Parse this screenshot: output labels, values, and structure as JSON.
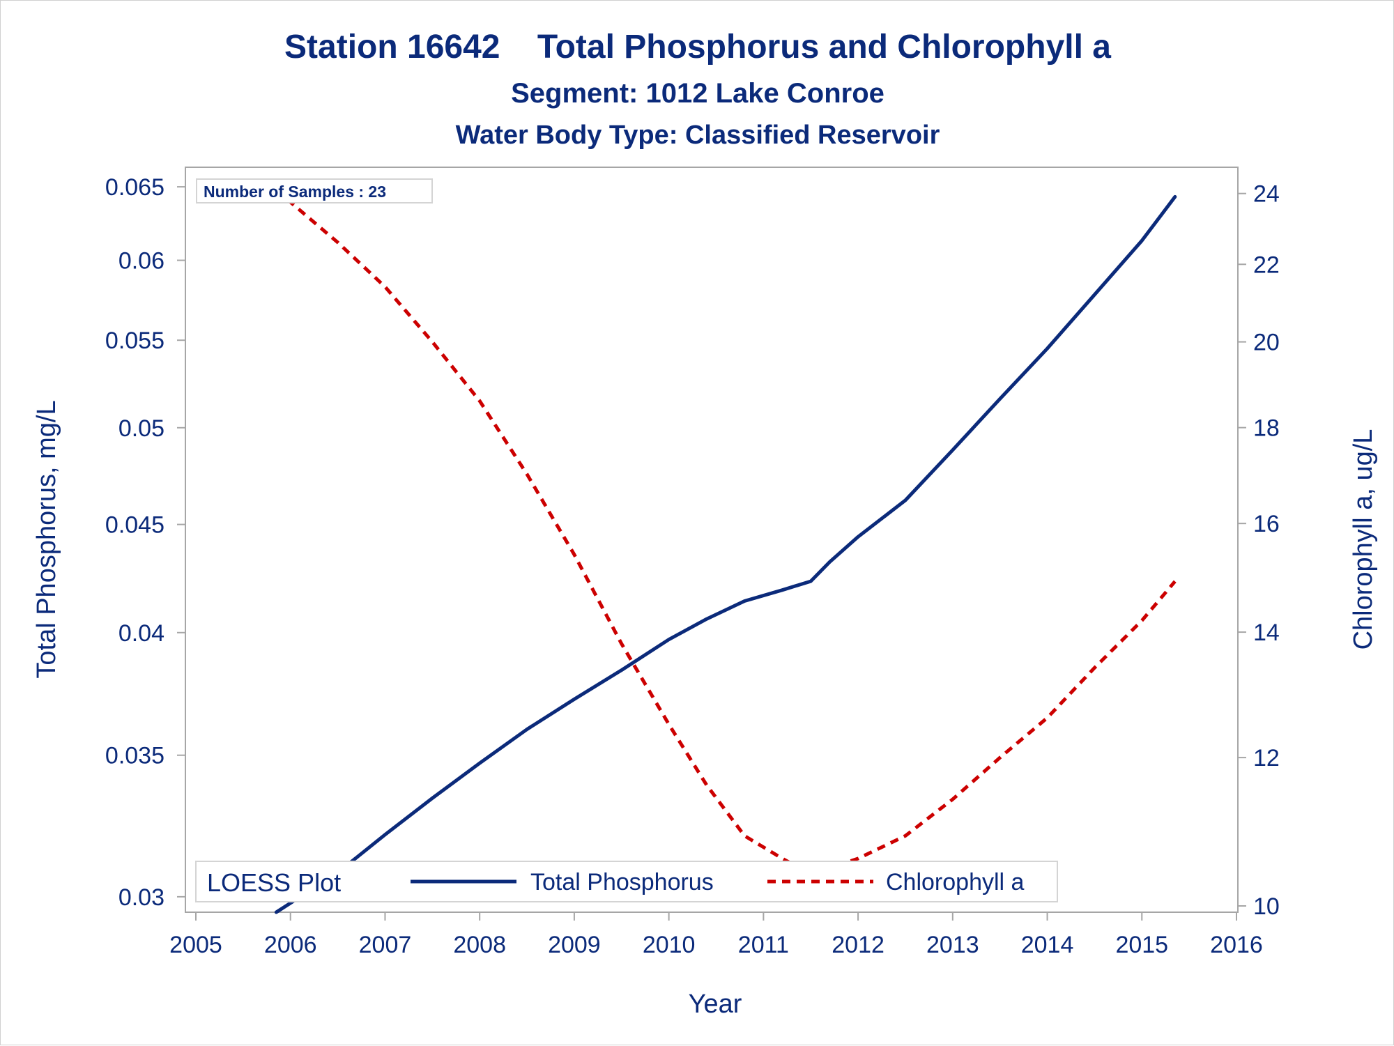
{
  "chart_data": {
    "type": "line",
    "title": "Station 16642    Total Phosphorus and Chlorophyll a",
    "subtitle": "Segment: 1012  Lake Conroe",
    "subtitle2": "Water Body Type: Classified Reservoir",
    "xlabel": "Year",
    "ylabel_left": "Total Phosphorus, mg/L",
    "ylabel_right": "Chlorophyll a, ug/L",
    "x_ticks": [
      "2005",
      "2006",
      "2007",
      "2008",
      "2009",
      "2010",
      "2011",
      "2012",
      "2013",
      "2014",
      "2015",
      "2016"
    ],
    "xlim": [
      2005,
      2016
    ],
    "y_left_scale": "log",
    "y_left_ticks": [
      "0.03",
      "0.035",
      "0.04",
      "0.045",
      "0.05",
      "0.055",
      "0.06",
      "0.065"
    ],
    "y_left_lim": [
      0.0295,
      0.0654
    ],
    "y_right_scale": "log",
    "y_right_ticks": [
      "10",
      "12",
      "14",
      "16",
      "18",
      "20",
      "22",
      "24"
    ],
    "y_right_lim": [
      10,
      24.2
    ],
    "annotation": "Number of Samples : 23",
    "legend": {
      "title": "LOESS Plot",
      "position": "bottom-left",
      "entries": [
        "Total Phosphorus",
        "Chlorophyll a"
      ]
    },
    "grid": false,
    "series": [
      {
        "name": "Total Phosphorus",
        "axis": "left",
        "color": "#0b2a7a",
        "style": "solid",
        "x": [
          2005.85,
          2006.5,
          2007,
          2007.5,
          2008,
          2008.5,
          2009,
          2009.5,
          2010,
          2010.4,
          2010.8,
          2011.2,
          2011.5,
          2011.7,
          2012,
          2012.5,
          2013,
          2013.5,
          2014,
          2014.5,
          2015,
          2015.35
        ],
        "y": [
          0.0295,
          0.0308,
          0.0321,
          0.0334,
          0.0347,
          0.036,
          0.0372,
          0.0384,
          0.0397,
          0.0406,
          0.0414,
          0.0419,
          0.0423,
          0.0432,
          0.0444,
          0.0462,
          0.0488,
          0.0516,
          0.0545,
          0.0578,
          0.0613,
          0.0643
        ]
      },
      {
        "name": "Chlorophyll a",
        "axis": "right",
        "color": "#cc0000",
        "style": "dashed",
        "x": [
          2005.85,
          2006.5,
          2007,
          2007.5,
          2008,
          2008.5,
          2009,
          2009.5,
          2010,
          2010.4,
          2010.8,
          2011.2,
          2011.5,
          2012,
          2012.5,
          2013,
          2013.5,
          2014,
          2014.5,
          2015,
          2015.35
        ],
        "y": [
          24.1,
          22.6,
          21.4,
          20,
          18.6,
          17,
          15.4,
          13.8,
          12.5,
          11.6,
          10.9,
          10.6,
          10.4,
          10.6,
          10.9,
          11.4,
          12,
          12.6,
          13.4,
          14.2,
          14.9
        ]
      }
    ]
  }
}
